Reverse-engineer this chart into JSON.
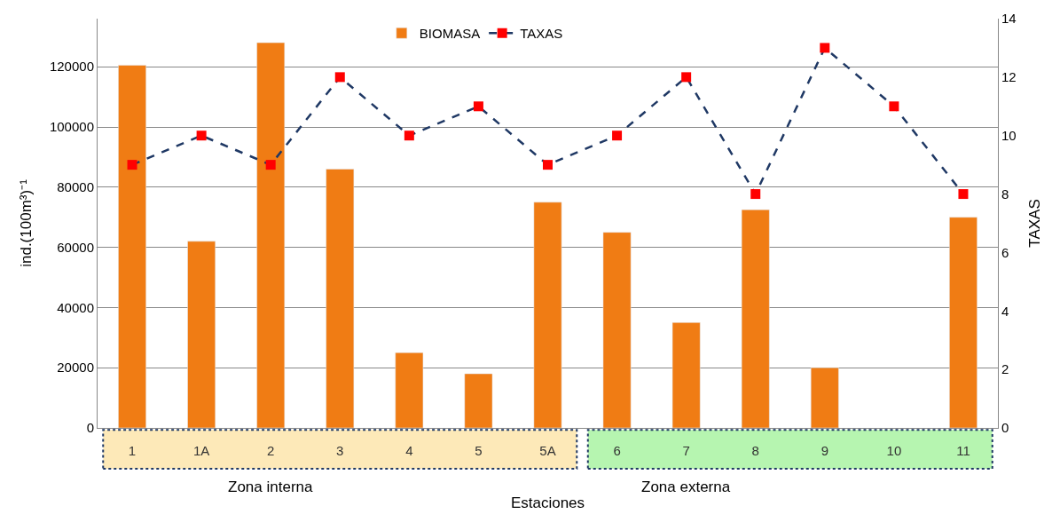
{
  "chart_data": {
    "type": "bar",
    "xlabel": "Estaciones",
    "ylabel": "ind.(100m³)⁻¹",
    "y2label": "TAXAS",
    "categories": [
      "1",
      "1A",
      "2",
      "3",
      "4",
      "5",
      "5A",
      "6",
      "7",
      "8",
      "9",
      "10",
      "11"
    ],
    "series": [
      {
        "name": "BIOMASA",
        "color": "#f07c14",
        "values": [
          120500,
          62000,
          128000,
          86000,
          25000,
          18000,
          75000,
          65000,
          35000,
          72500,
          20000,
          null,
          70000
        ]
      },
      {
        "name": "TAXAS",
        "type": "line",
        "axis": "y2",
        "color": "#1f3864",
        "marker": "square",
        "line_style": "dashed",
        "values": [
          9,
          10,
          9,
          12,
          10,
          11,
          9,
          10,
          12,
          8,
          13,
          11,
          8
        ]
      }
    ],
    "ylim": [
      0,
      136000
    ],
    "yticks": [
      0,
      20000,
      40000,
      60000,
      80000,
      100000,
      120000
    ],
    "y2lim": [
      0,
      14
    ],
    "y2ticks": [
      0,
      2,
      4,
      6,
      8,
      10,
      12,
      14
    ],
    "annotations": [
      "Zona interna",
      "Zona externa"
    ],
    "grid": "y",
    "legend": "top"
  }
}
